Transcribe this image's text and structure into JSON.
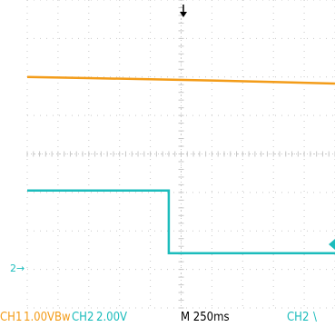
{
  "colors": {
    "ch1": "#f39c19",
    "ch2": "#1bbcbc",
    "grid": "#c8c8c8",
    "background": "#ffffff",
    "marker": "#000000"
  },
  "status": {
    "ch1_label": "CH1",
    "ch1_value": "1.00VBw",
    "ch2_label": "CH2",
    "ch2_value": "2.00V",
    "timebase": "M 250ms",
    "trigger_label": "CH2",
    "trigger_slope": "\\"
  },
  "markers": {
    "ch2_ground": "2→",
    "trigger_icon": "down-arrow-icon",
    "trigger_level_icon": "left-triangle-icon"
  },
  "chart_data": {
    "type": "line",
    "title": "",
    "xlabel": "",
    "ylabel": "",
    "grid": true,
    "x_divisions": 10,
    "y_divisions": 8,
    "series": [
      {
        "name": "CH1",
        "color": "#f39c19",
        "x": [
          0,
          2,
          4,
          6,
          8,
          10
        ],
        "y": [
          2.0,
          1.97,
          1.94,
          1.91,
          1.87,
          1.83
        ]
      },
      {
        "name": "CH2",
        "color": "#1bbcbc",
        "x": [
          0,
          4.6,
          4.6,
          10
        ],
        "y": [
          -0.95,
          -0.95,
          -2.58,
          -2.58
        ]
      }
    ]
  }
}
